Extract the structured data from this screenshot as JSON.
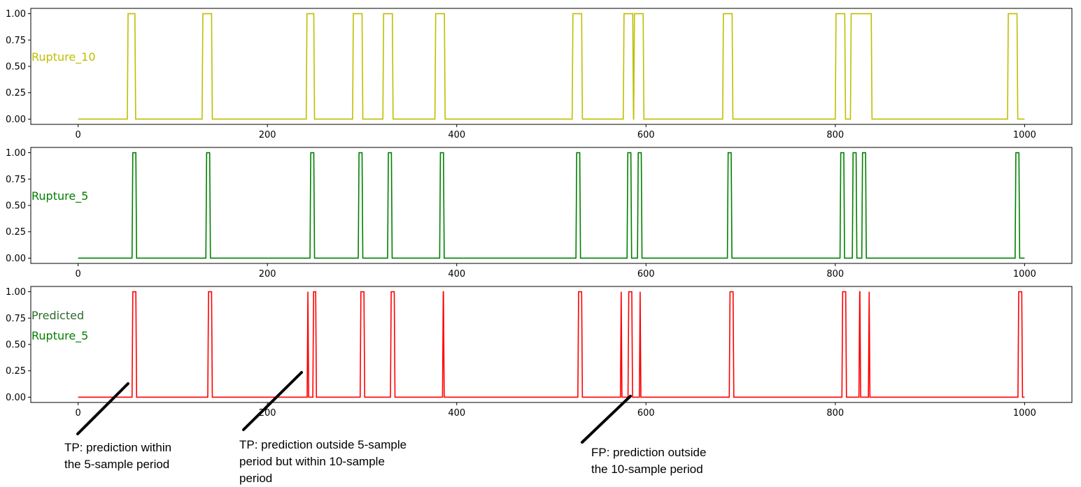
{
  "chart_data": [
    {
      "type": "line",
      "series": [
        {
          "name": "Rupture_10",
          "color": "#bfbf00",
          "segments": [
            [
              52,
              60
            ],
            [
              131,
              141
            ],
            [
              241,
              249
            ],
            [
              290,
              300
            ],
            [
              322,
              332
            ],
            [
              377,
              387
            ],
            [
              522,
              532
            ],
            [
              576,
              586
            ],
            [
              587,
              597
            ],
            [
              681,
              691
            ],
            [
              800,
              810
            ],
            [
              816,
              838
            ],
            [
              982,
              992
            ]
          ]
        }
      ],
      "series_label_lines": [
        "Rupture_10"
      ],
      "label_colors": [
        "#bfbf00"
      ],
      "xlim": [
        -50,
        1050
      ],
      "ylim": [
        -0.05,
        1.05
      ],
      "xticks": [
        "0",
        "200",
        "400",
        "600",
        "800",
        "1000"
      ],
      "yticks": [
        "0.00",
        "0.25",
        "0.50",
        "0.75",
        "1.00"
      ],
      "xmax_data": 1000
    },
    {
      "type": "line",
      "series": [
        {
          "name": "Rupture_5",
          "color": "#008000",
          "segments": [
            [
              57,
              61
            ],
            [
              135,
              139
            ],
            [
              245,
              249
            ],
            [
              296,
              300
            ],
            [
              327,
              331
            ],
            [
              382,
              386
            ],
            [
              526,
              530
            ],
            [
              580,
              584
            ],
            [
              591,
              595
            ],
            [
              686,
              690
            ],
            [
              805,
              809
            ],
            [
              818,
              822
            ],
            [
              828,
              832
            ],
            [
              990,
              994
            ]
          ]
        }
      ],
      "series_label_lines": [
        "Rupture_5"
      ],
      "label_colors": [
        "#008000"
      ],
      "xlim": [
        -50,
        1050
      ],
      "ylim": [
        -0.05,
        1.05
      ],
      "xticks": [
        "0",
        "200",
        "400",
        "600",
        "800",
        "1000"
      ],
      "yticks": [
        "0.00",
        "0.25",
        "0.50",
        "0.75",
        "1.00"
      ],
      "xmax_data": 1000
    },
    {
      "type": "line",
      "series": [
        {
          "name": "Predicted Rupture_5",
          "color": "#ff0000",
          "segments": [
            [
              57,
              61
            ],
            [
              137,
              141
            ],
            [
              242,
              242.5
            ],
            [
              248,
              251
            ],
            [
              298,
              302
            ],
            [
              330,
              334
            ],
            [
              385,
              386
            ],
            [
              528,
              532
            ],
            [
              573,
              573.5
            ],
            [
              581,
              585
            ],
            [
              593,
              593.5
            ],
            [
              688,
              692
            ],
            [
              807,
              811
            ],
            [
              825,
              826
            ],
            [
              835,
              835.5
            ],
            [
              993,
              997
            ]
          ]
        }
      ],
      "series_label_lines": [
        "Predicted",
        "Rupture_5"
      ],
      "label_colors": [
        "#2e6b2e",
        "#008000"
      ],
      "xlim": [
        -50,
        1050
      ],
      "ylim": [
        -0.05,
        1.05
      ],
      "xticks": [
        "0",
        "200",
        "400",
        "600",
        "800",
        "1000"
      ],
      "yticks": [
        "0.00",
        "0.25",
        "0.50",
        "0.75",
        "1.00"
      ],
      "xmax_data": 1000
    }
  ],
  "annotations": [
    {
      "text": "TP: prediction within\nthe 5-sample period"
    },
    {
      "text": "TP: prediction outside 5-sample\nperiod but within 10-sample\nperiod"
    },
    {
      "text": "FP: prediction outside\nthe 10-sample period"
    }
  ]
}
